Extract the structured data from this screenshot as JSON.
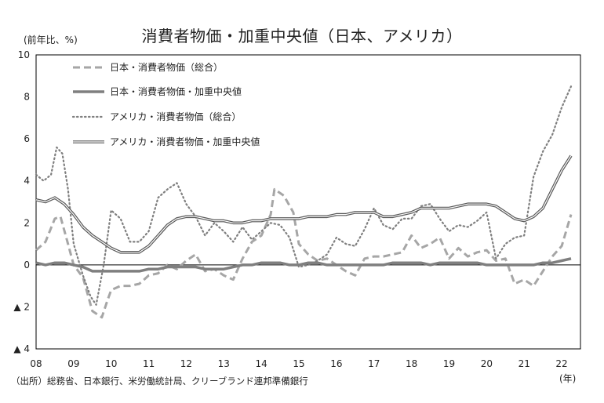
{
  "title": "消費者物価・加重中央値（日本、アメリカ）",
  "unit_label": "(前年比、%)",
  "source": "（出所）総務省、日本銀行、米労働統計局、クリーブランド連邦準備銀行",
  "x_unit_label": "(年)",
  "chart_data": {
    "type": "line",
    "title": "消費者物価・加重中央値（日本、アメリカ）",
    "ylabel": "(前年比、%)",
    "xlabel": "(年)",
    "ylim": [
      -4,
      10
    ],
    "xlim": [
      2008.0,
      2022.5
    ],
    "y_ticks": [
      {
        "value": 10,
        "label": "10"
      },
      {
        "value": 8,
        "label": "8"
      },
      {
        "value": 6,
        "label": "6"
      },
      {
        "value": 4,
        "label": "4"
      },
      {
        "value": 2,
        "label": "2"
      },
      {
        "value": 0,
        "label": "0"
      },
      {
        "value": -2,
        "label": "▲ 2"
      },
      {
        "value": -4,
        "label": "▲ 4"
      }
    ],
    "x_ticks": [
      {
        "value": 2008,
        "label": "08"
      },
      {
        "value": 2009,
        "label": "09"
      },
      {
        "value": 2010,
        "label": "10"
      },
      {
        "value": 2011,
        "label": "11"
      },
      {
        "value": 2012,
        "label": "12"
      },
      {
        "value": 2013,
        "label": "13"
      },
      {
        "value": 2014,
        "label": "14"
      },
      {
        "value": 2015,
        "label": "15"
      },
      {
        "value": 2016,
        "label": "16"
      },
      {
        "value": 2017,
        "label": "17"
      },
      {
        "value": 2018,
        "label": "18"
      },
      {
        "value": 2019,
        "label": "19"
      },
      {
        "value": 2020,
        "label": "20"
      },
      {
        "value": 2021,
        "label": "21"
      },
      {
        "value": 2022,
        "label": "22"
      }
    ],
    "legend_position": "top-left",
    "series": [
      {
        "name": "日本・消費者物価（総合）",
        "style": "dashed",
        "color": "#a6a6a6",
        "points": [
          [
            2008.0,
            0.7
          ],
          [
            2008.25,
            1.1
          ],
          [
            2008.5,
            2.2
          ],
          [
            2008.65,
            2.3
          ],
          [
            2008.85,
            1.0
          ],
          [
            2009.0,
            0.0
          ],
          [
            2009.25,
            -0.6
          ],
          [
            2009.5,
            -2.2
          ],
          [
            2009.75,
            -2.5
          ],
          [
            2009.9,
            -1.7
          ],
          [
            2010.0,
            -1.2
          ],
          [
            2010.25,
            -1.0
          ],
          [
            2010.5,
            -1.0
          ],
          [
            2010.75,
            -0.9
          ],
          [
            2011.0,
            -0.5
          ],
          [
            2011.25,
            -0.4
          ],
          [
            2011.5,
            0.0
          ],
          [
            2011.75,
            -0.2
          ],
          [
            2012.0,
            0.2
          ],
          [
            2012.25,
            0.5
          ],
          [
            2012.5,
            -0.3
          ],
          [
            2012.75,
            -0.2
          ],
          [
            2013.0,
            -0.5
          ],
          [
            2013.25,
            -0.7
          ],
          [
            2013.5,
            0.3
          ],
          [
            2013.75,
            1.1
          ],
          [
            2014.0,
            1.4
          ],
          [
            2014.25,
            2.4
          ],
          [
            2014.35,
            3.6
          ],
          [
            2014.6,
            3.3
          ],
          [
            2014.85,
            2.5
          ],
          [
            2015.0,
            1.0
          ],
          [
            2015.25,
            0.5
          ],
          [
            2015.5,
            0.2
          ],
          [
            2015.75,
            0.3
          ],
          [
            2016.0,
            0.0
          ],
          [
            2016.25,
            -0.3
          ],
          [
            2016.5,
            -0.5
          ],
          [
            2016.75,
            0.3
          ],
          [
            2017.0,
            0.4
          ],
          [
            2017.25,
            0.4
          ],
          [
            2017.5,
            0.5
          ],
          [
            2017.75,
            0.6
          ],
          [
            2018.0,
            1.4
          ],
          [
            2018.25,
            0.8
          ],
          [
            2018.5,
            1.0
          ],
          [
            2018.75,
            1.3
          ],
          [
            2019.0,
            0.3
          ],
          [
            2019.25,
            0.8
          ],
          [
            2019.5,
            0.4
          ],
          [
            2019.75,
            0.6
          ],
          [
            2020.0,
            0.7
          ],
          [
            2020.25,
            0.2
          ],
          [
            2020.5,
            0.3
          ],
          [
            2020.75,
            -0.9
          ],
          [
            2021.0,
            -0.7
          ],
          [
            2021.25,
            -1.0
          ],
          [
            2021.5,
            -0.3
          ],
          [
            2021.75,
            0.4
          ],
          [
            2022.0,
            0.9
          ],
          [
            2022.25,
            2.4
          ]
        ]
      },
      {
        "name": "日本・消費者物価・加重中央値",
        "style": "solid-thick",
        "color": "#7f7f7f",
        "points": [
          [
            2008.0,
            0.1
          ],
          [
            2008.25,
            0.0
          ],
          [
            2008.5,
            0.1
          ],
          [
            2008.75,
            0.1
          ],
          [
            2009.0,
            0.0
          ],
          [
            2009.25,
            -0.1
          ],
          [
            2009.5,
            -0.3
          ],
          [
            2009.75,
            -0.3
          ],
          [
            2010.0,
            -0.3
          ],
          [
            2010.25,
            -0.3
          ],
          [
            2010.5,
            -0.3
          ],
          [
            2010.75,
            -0.3
          ],
          [
            2011.0,
            -0.2
          ],
          [
            2011.25,
            -0.2
          ],
          [
            2011.5,
            -0.1
          ],
          [
            2011.75,
            -0.1
          ],
          [
            2012.0,
            -0.1
          ],
          [
            2012.25,
            -0.1
          ],
          [
            2012.5,
            -0.2
          ],
          [
            2012.75,
            -0.2
          ],
          [
            2013.0,
            -0.2
          ],
          [
            2013.25,
            -0.1
          ],
          [
            2013.5,
            0.0
          ],
          [
            2013.75,
            0.0
          ],
          [
            2014.0,
            0.1
          ],
          [
            2014.25,
            0.1
          ],
          [
            2014.5,
            0.1
          ],
          [
            2014.75,
            0.0
          ],
          [
            2015.0,
            0.0
          ],
          [
            2015.25,
            0.1
          ],
          [
            2015.5,
            0.1
          ],
          [
            2015.75,
            0.0
          ],
          [
            2016.0,
            0.0
          ],
          [
            2016.25,
            0.0
          ],
          [
            2016.5,
            0.0
          ],
          [
            2016.75,
            0.0
          ],
          [
            2017.0,
            0.0
          ],
          [
            2017.25,
            0.0
          ],
          [
            2017.5,
            0.1
          ],
          [
            2017.75,
            0.1
          ],
          [
            2018.0,
            0.1
          ],
          [
            2018.25,
            0.1
          ],
          [
            2018.5,
            0.0
          ],
          [
            2018.75,
            0.1
          ],
          [
            2019.0,
            0.1
          ],
          [
            2019.25,
            0.1
          ],
          [
            2019.5,
            0.1
          ],
          [
            2019.75,
            0.1
          ],
          [
            2020.0,
            0.0
          ],
          [
            2020.25,
            0.0
          ],
          [
            2020.5,
            0.0
          ],
          [
            2020.75,
            0.0
          ],
          [
            2021.0,
            0.0
          ],
          [
            2021.25,
            0.0
          ],
          [
            2021.5,
            0.1
          ],
          [
            2021.75,
            0.1
          ],
          [
            2022.0,
            0.2
          ],
          [
            2022.25,
            0.3
          ]
        ]
      },
      {
        "name": "アメリカ・消費者物価（総合）",
        "style": "dotted",
        "color": "#7f7f7f",
        "points": [
          [
            2008.0,
            4.3
          ],
          [
            2008.2,
            4.0
          ],
          [
            2008.4,
            4.3
          ],
          [
            2008.55,
            5.6
          ],
          [
            2008.7,
            5.3
          ],
          [
            2008.85,
            3.6
          ],
          [
            2009.0,
            1.0
          ],
          [
            2009.25,
            -0.5
          ],
          [
            2009.45,
            -1.5
          ],
          [
            2009.6,
            -1.9
          ],
          [
            2009.8,
            0.0
          ],
          [
            2010.0,
            2.6
          ],
          [
            2010.25,
            2.2
          ],
          [
            2010.5,
            1.1
          ],
          [
            2010.75,
            1.1
          ],
          [
            2011.0,
            1.6
          ],
          [
            2011.25,
            3.2
          ],
          [
            2011.5,
            3.6
          ],
          [
            2011.75,
            3.9
          ],
          [
            2012.0,
            2.9
          ],
          [
            2012.25,
            2.3
          ],
          [
            2012.5,
            1.4
          ],
          [
            2012.75,
            2.0
          ],
          [
            2013.0,
            1.6
          ],
          [
            2013.25,
            1.1
          ],
          [
            2013.5,
            1.8
          ],
          [
            2013.75,
            1.2
          ],
          [
            2014.0,
            1.6
          ],
          [
            2014.25,
            2.0
          ],
          [
            2014.5,
            1.9
          ],
          [
            2014.75,
            1.3
          ],
          [
            2015.0,
            -0.1
          ],
          [
            2015.25,
            0.0
          ],
          [
            2015.5,
            0.2
          ],
          [
            2015.75,
            0.5
          ],
          [
            2016.0,
            1.3
          ],
          [
            2016.25,
            1.0
          ],
          [
            2016.5,
            0.9
          ],
          [
            2016.75,
            1.7
          ],
          [
            2017.0,
            2.7
          ],
          [
            2017.25,
            1.9
          ],
          [
            2017.5,
            1.7
          ],
          [
            2017.75,
            2.2
          ],
          [
            2018.0,
            2.2
          ],
          [
            2018.25,
            2.8
          ],
          [
            2018.5,
            2.9
          ],
          [
            2018.75,
            2.2
          ],
          [
            2019.0,
            1.6
          ],
          [
            2019.25,
            1.9
          ],
          [
            2019.5,
            1.8
          ],
          [
            2019.75,
            2.1
          ],
          [
            2020.0,
            2.5
          ],
          [
            2020.25,
            0.3
          ],
          [
            2020.5,
            1.0
          ],
          [
            2020.75,
            1.3
          ],
          [
            2021.0,
            1.4
          ],
          [
            2021.25,
            4.2
          ],
          [
            2021.5,
            5.4
          ],
          [
            2021.75,
            6.2
          ],
          [
            2022.0,
            7.5
          ],
          [
            2022.25,
            8.5
          ]
        ]
      },
      {
        "name": "アメリカ・消費者物価・加重中央値",
        "style": "double",
        "color": "#595959",
        "points": [
          [
            2008.0,
            3.1
          ],
          [
            2008.25,
            3.0
          ],
          [
            2008.5,
            3.2
          ],
          [
            2008.75,
            2.9
          ],
          [
            2009.0,
            2.4
          ],
          [
            2009.25,
            1.8
          ],
          [
            2009.5,
            1.4
          ],
          [
            2009.75,
            1.1
          ],
          [
            2010.0,
            0.8
          ],
          [
            2010.25,
            0.6
          ],
          [
            2010.5,
            0.6
          ],
          [
            2010.75,
            0.6
          ],
          [
            2011.0,
            0.9
          ],
          [
            2011.25,
            1.4
          ],
          [
            2011.5,
            1.9
          ],
          [
            2011.75,
            2.2
          ],
          [
            2012.0,
            2.3
          ],
          [
            2012.25,
            2.3
          ],
          [
            2012.5,
            2.2
          ],
          [
            2012.75,
            2.1
          ],
          [
            2013.0,
            2.1
          ],
          [
            2013.25,
            2.0
          ],
          [
            2013.5,
            2.0
          ],
          [
            2013.75,
            2.1
          ],
          [
            2014.0,
            2.1
          ],
          [
            2014.25,
            2.2
          ],
          [
            2014.5,
            2.2
          ],
          [
            2014.75,
            2.2
          ],
          [
            2015.0,
            2.2
          ],
          [
            2015.25,
            2.3
          ],
          [
            2015.5,
            2.3
          ],
          [
            2015.75,
            2.3
          ],
          [
            2016.0,
            2.4
          ],
          [
            2016.25,
            2.4
          ],
          [
            2016.5,
            2.5
          ],
          [
            2016.75,
            2.5
          ],
          [
            2017.0,
            2.5
          ],
          [
            2017.25,
            2.3
          ],
          [
            2017.5,
            2.3
          ],
          [
            2017.75,
            2.4
          ],
          [
            2018.0,
            2.5
          ],
          [
            2018.25,
            2.7
          ],
          [
            2018.5,
            2.7
          ],
          [
            2018.75,
            2.7
          ],
          [
            2019.0,
            2.7
          ],
          [
            2019.25,
            2.8
          ],
          [
            2019.5,
            2.9
          ],
          [
            2019.75,
            2.9
          ],
          [
            2020.0,
            2.9
          ],
          [
            2020.25,
            2.8
          ],
          [
            2020.5,
            2.5
          ],
          [
            2020.75,
            2.2
          ],
          [
            2021.0,
            2.1
          ],
          [
            2021.25,
            2.3
          ],
          [
            2021.5,
            2.7
          ],
          [
            2021.75,
            3.6
          ],
          [
            2022.0,
            4.5
          ],
          [
            2022.25,
            5.2
          ]
        ]
      }
    ]
  }
}
